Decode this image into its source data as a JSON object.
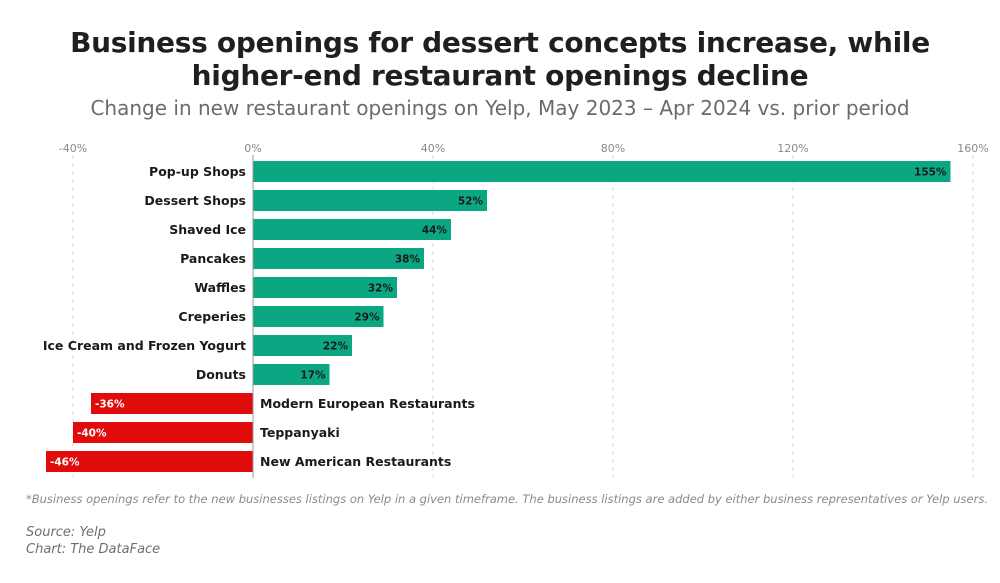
{
  "title_line1": "Business openings for dessert concepts increase, while",
  "title_line2": "higher-end restaurant openings decline",
  "subtitle": "Change in new restaurant openings on Yelp, May 2023 – Apr 2024 vs. prior period",
  "footnote": "*Business openings refer to the new businesses listings on Yelp in a given timeframe. The business listings are added by either business representatives or Yelp users.",
  "source": "Source: Yelp",
  "credit": "Chart: The DataFace",
  "colors": {
    "positive": "#0aa782",
    "negative": "#e00b0b",
    "grid": "#d9d9d9",
    "axis": "#8a8a8a"
  },
  "chart_data": {
    "type": "bar",
    "orientation": "horizontal",
    "unit": "%",
    "xlim": [
      -40,
      160
    ],
    "ticks": [
      -40,
      0,
      40,
      80,
      120,
      160
    ],
    "tick_labels": [
      "-40%",
      "0%",
      "40%",
      "80%",
      "120%",
      "160%"
    ],
    "grid": true,
    "categories": [
      "Pop-up Shops",
      "Dessert Shops",
      "Shaved Ice",
      "Pancakes",
      "Waffles",
      "Creperies",
      "Ice Cream and Frozen Yogurt",
      "Donuts",
      "Modern European Restaurants",
      "Teppanyaki",
      "New American Restaurants"
    ],
    "values": [
      155,
      52,
      44,
      38,
      32,
      29,
      22,
      17,
      -36,
      -40,
      -46
    ],
    "value_labels": [
      "155%",
      "52%",
      "44%",
      "38%",
      "32%",
      "29%",
      "22%",
      "17%",
      "-36%",
      "-40%",
      "-46%"
    ]
  }
}
